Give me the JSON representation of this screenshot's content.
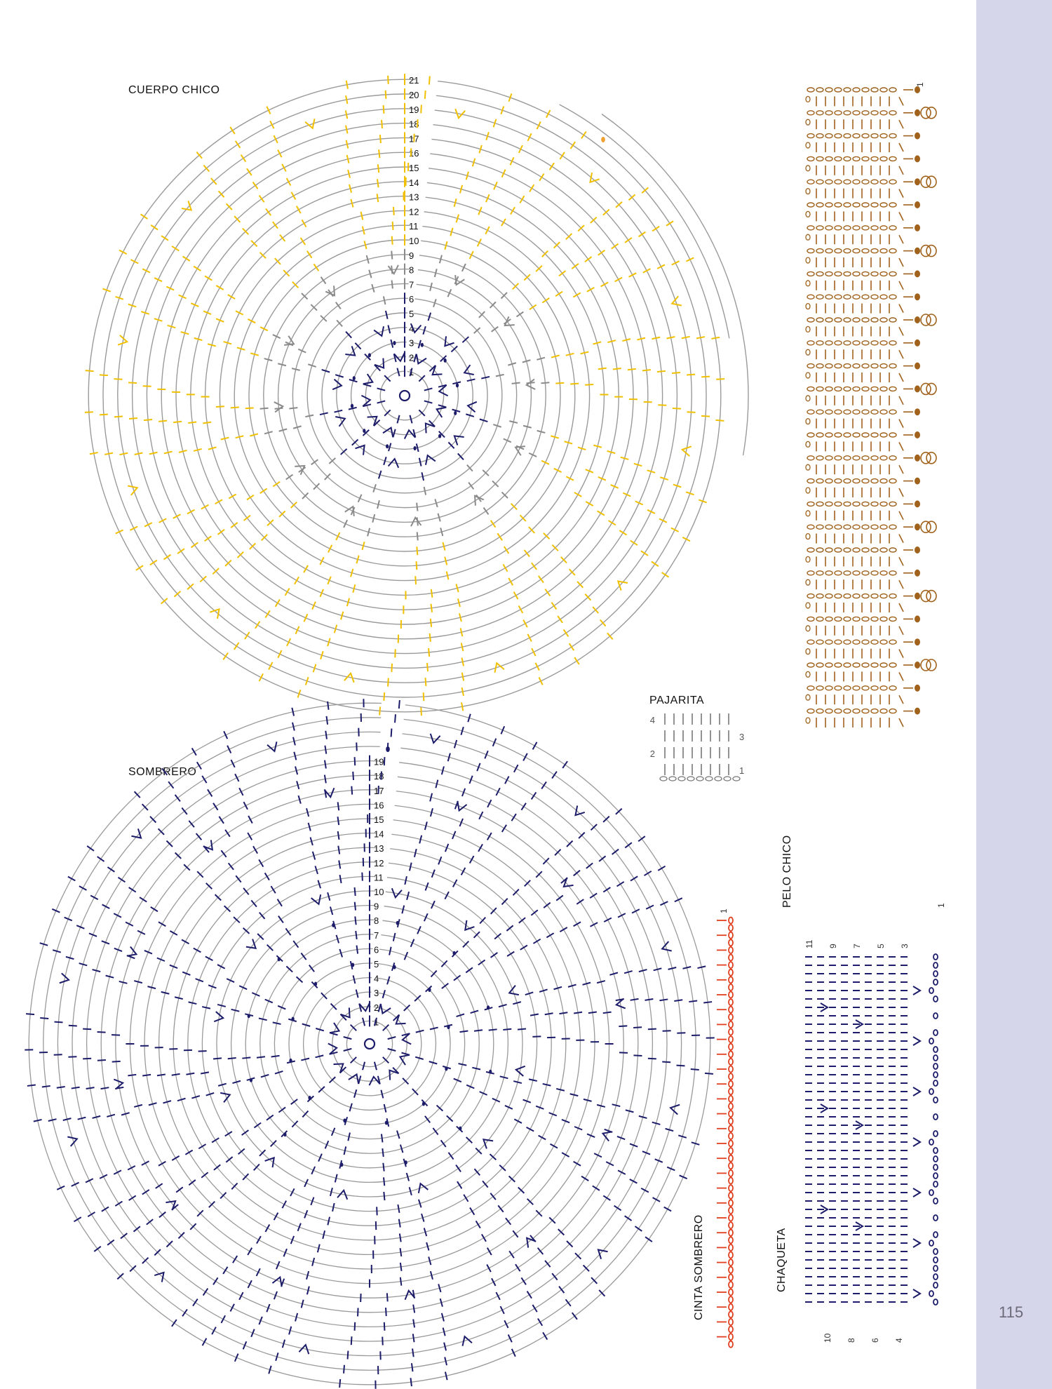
{
  "page": {
    "number": "115",
    "side_band_color": "#d6d6ea"
  },
  "colors": {
    "ring": "#9a9a9a",
    "yellow": "#f0c000",
    "gray": "#8a8a8a",
    "navy": "#1c1c6a",
    "brown": "#a0621c",
    "red": "#e04020"
  },
  "cuerpo_chico": {
    "title": "CUERPO CHICO",
    "rounds": 21,
    "round_labels": [
      "1",
      "2",
      "3",
      "4",
      "5",
      "6",
      "7",
      "8",
      "9",
      "10",
      "11",
      "12",
      "13",
      "14",
      "15",
      "16",
      "17",
      "18",
      "19",
      "20",
      "21"
    ]
  },
  "sombrero": {
    "title": "SOMBRERO",
    "rounds": 19,
    "round_labels": [
      "1",
      "2",
      "3",
      "4",
      "5",
      "6",
      "7",
      "8",
      "9",
      "10",
      "11",
      "12",
      "13",
      "14",
      "15",
      "16",
      "17",
      "18",
      "19"
    ]
  },
  "pajarita": {
    "title": "PAJARITA",
    "row_labels": [
      "4",
      "3",
      "2",
      "1"
    ]
  },
  "pelo_chico": {
    "title": "PELO CHICO",
    "row_labels": [
      "1",
      "1"
    ]
  },
  "cinta_sombrero": {
    "title": "CINTA SOMBRERO",
    "row_labels": [
      "1"
    ]
  },
  "chaqueta": {
    "title": "CHAQUETA",
    "top_labels": [
      "11",
      "9",
      "7",
      "5",
      "3"
    ],
    "bottom_labels": [
      "10",
      "8",
      "6",
      "4"
    ]
  }
}
